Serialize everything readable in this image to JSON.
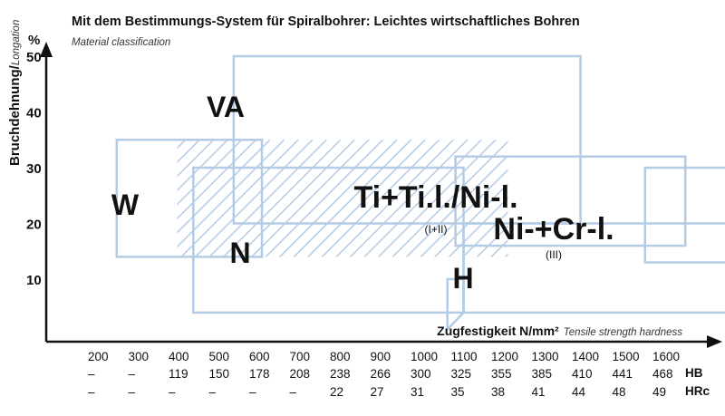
{
  "chart_data": {
    "type": "diagram",
    "title": "Mit dem Bestimmungs-System für Spiralbohrer: Leichtes wirtschaftliches Bohren",
    "subtitle": "Material classification",
    "ylabel_de": "Bruchdehnung/",
    "ylabel_en": "Longation",
    "yunit": "%",
    "xlabel_de": "Zugfestigkeit N/mm²",
    "xlabel_en": "Tensile strength hardness",
    "y_ticks": [
      "10",
      "20",
      "30",
      "40",
      "50"
    ],
    "ylim": [
      0,
      55
    ],
    "x_categories": [
      {
        "n": "200",
        "hb": "–",
        "hrc": "–"
      },
      {
        "n": "300",
        "hb": "–",
        "hrc": "–"
      },
      {
        "n": "400",
        "hb": "119",
        "hrc": "–"
      },
      {
        "n": "500",
        "hb": "150",
        "hrc": "–"
      },
      {
        "n": "600",
        "hb": "178",
        "hrc": "–"
      },
      {
        "n": "700",
        "hb": "208",
        "hrc": "–"
      },
      {
        "n": "800",
        "hb": "238",
        "hrc": "22"
      },
      {
        "n": "900",
        "hb": "266",
        "hrc": "27"
      },
      {
        "n": "1000",
        "hb": "300",
        "hrc": "31"
      },
      {
        "n": "1100",
        "hb": "325",
        "hrc": "35"
      },
      {
        "n": "1200",
        "hb": "355",
        "hrc": "38"
      },
      {
        "n": "1300",
        "hb": "385",
        "hrc": "41"
      },
      {
        "n": "1400",
        "hb": "410",
        "hrc": "44"
      },
      {
        "n": "1500",
        "hb": "441",
        "hrc": "48"
      },
      {
        "n": "1600",
        "hb": "468",
        "hrc": "49"
      }
    ],
    "scale_labels": {
      "hb": "HB",
      "hrc": "HRc"
    },
    "regions": [
      {
        "label": "W",
        "x": [
          240,
          600
        ],
        "y": [
          14,
          35
        ]
      },
      {
        "label": "VA",
        "x": [
          530,
          1390
        ],
        "y": [
          20,
          50
        ]
      },
      {
        "label": "N",
        "x": [
          430,
          1100
        ],
        "y": [
          4,
          30
        ]
      },
      {
        "label": "Ti+Ti.l./Ni-l.",
        "sublabel": "(I+II)",
        "x": [
          1080,
          1650
        ],
        "y": [
          16,
          32
        ]
      },
      {
        "label": "Ni-+Cr-l.",
        "sublabel": "(III)",
        "x": [
          1550,
          2020
        ],
        "y": [
          13,
          30
        ]
      },
      {
        "label": "H",
        "x": [
          1100,
          2430
        ],
        "y": [
          4,
          20
        ]
      }
    ],
    "hatched_region": {
      "x": [
        390,
        1210
      ],
      "y": [
        14,
        35
      ]
    },
    "colors": {
      "region": "#b3cbe4",
      "hatch": "#b3cbe4",
      "text": "#111111"
    }
  }
}
